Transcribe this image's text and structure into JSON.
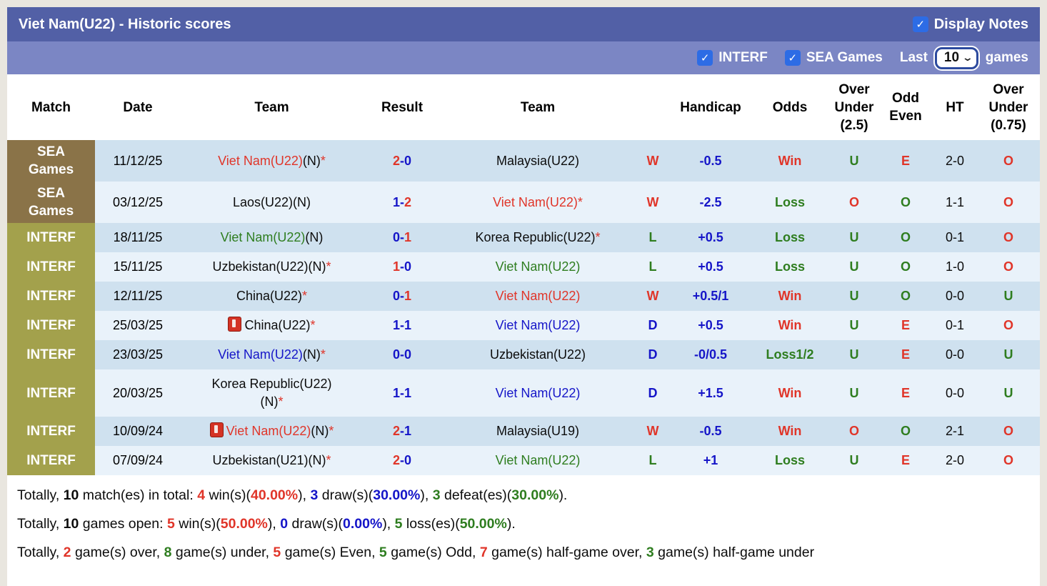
{
  "title_bar": {
    "title": "Viet Nam(U22) - Historic scores",
    "display_notes": {
      "label": "Display Notes",
      "checked": true
    }
  },
  "filter_bar": {
    "interf": {
      "label": "INTERF",
      "checked": true
    },
    "sea_games": {
      "label": "SEA Games",
      "checked": true
    },
    "last_label": "Last",
    "games_label": "games",
    "last_games_select": {
      "value": "10"
    }
  },
  "colors": {
    "win_red": "#e03529",
    "draw_blue": "#1515c8",
    "loss_green": "#2e7d1f",
    "text_black": "#0c0c0c",
    "title_bar_bg": "#5260a6",
    "filter_bar_bg": "#7b86c4",
    "sea_cell_bg": "#8a7348",
    "interf_cell_bg": "#a3a14c",
    "stripe_dark": "#cfe1ef",
    "stripe_light": "#e9f2fa",
    "checkbox_blue": "#2d6ce5"
  },
  "table": {
    "columns": [
      "Match",
      "Date",
      "Team",
      "Result",
      "Team",
      "",
      "Handicap",
      "Odds",
      "Over\nUnder\n(2.5)",
      "Odd\nEven",
      "HT",
      "Over\nUnder\n(0.75)"
    ],
    "rows": [
      {
        "match": "SEA\nGames",
        "match_type": "sea",
        "date": "11/12/25",
        "home": [
          {
            "t": "Viet Nam(U22)",
            "c": "red"
          },
          {
            "t": "(N)",
            "c": "black"
          },
          {
            "t": "*",
            "c": "red"
          }
        ],
        "result": [
          {
            "t": "2",
            "c": "red"
          },
          {
            "t": "-",
            "c": "blue"
          },
          {
            "t": "0",
            "c": "blue"
          }
        ],
        "away": [
          {
            "t": "Malaysia(U22)",
            "c": "black"
          }
        ],
        "wdl": {
          "t": "W",
          "c": "red"
        },
        "handicap": {
          "t": "-0.5",
          "c": "blue"
        },
        "odds": {
          "t": "Win",
          "c": "red"
        },
        "ou25": {
          "t": "U",
          "c": "green"
        },
        "oddeven": {
          "t": "E",
          "c": "red"
        },
        "ht": "2-0",
        "ou075": {
          "t": "O",
          "c": "red"
        }
      },
      {
        "match": "SEA\nGames",
        "match_type": "sea",
        "date": "03/12/25",
        "home": [
          {
            "t": "Laos(U22)(N)",
            "c": "black"
          }
        ],
        "result": [
          {
            "t": "1",
            "c": "blue"
          },
          {
            "t": "-",
            "c": "blue"
          },
          {
            "t": "2",
            "c": "red"
          }
        ],
        "away": [
          {
            "t": "Viet Nam(U22)",
            "c": "red"
          },
          {
            "t": "*",
            "c": "red"
          }
        ],
        "wdl": {
          "t": "W",
          "c": "red"
        },
        "handicap": {
          "t": "-2.5",
          "c": "blue"
        },
        "odds": {
          "t": "Loss",
          "c": "green"
        },
        "ou25": {
          "t": "O",
          "c": "red"
        },
        "oddeven": {
          "t": "O",
          "c": "green"
        },
        "ht": "1-1",
        "ou075": {
          "t": "O",
          "c": "red"
        }
      },
      {
        "match": "INTERF",
        "match_type": "interf",
        "date": "18/11/25",
        "home": [
          {
            "t": "Viet Nam(U22)",
            "c": "green"
          },
          {
            "t": "(N)",
            "c": "black"
          }
        ],
        "result": [
          {
            "t": "0",
            "c": "blue"
          },
          {
            "t": "-",
            "c": "blue"
          },
          {
            "t": "1",
            "c": "red"
          }
        ],
        "away": [
          {
            "t": "Korea Republic(U22)",
            "c": "black"
          },
          {
            "t": "*",
            "c": "red"
          }
        ],
        "wdl": {
          "t": "L",
          "c": "green"
        },
        "handicap": {
          "t": "+0.5",
          "c": "blue"
        },
        "odds": {
          "t": "Loss",
          "c": "green"
        },
        "ou25": {
          "t": "U",
          "c": "green"
        },
        "oddeven": {
          "t": "O",
          "c": "green"
        },
        "ht": "0-1",
        "ou075": {
          "t": "O",
          "c": "red"
        }
      },
      {
        "match": "INTERF",
        "match_type": "interf",
        "date": "15/11/25",
        "home": [
          {
            "t": "Uzbekistan(U22)(N)",
            "c": "black"
          },
          {
            "t": "*",
            "c": "red"
          }
        ],
        "result": [
          {
            "t": "1",
            "c": "red"
          },
          {
            "t": "-",
            "c": "blue"
          },
          {
            "t": "0",
            "c": "blue"
          }
        ],
        "away": [
          {
            "t": "Viet Nam(U22)",
            "c": "green"
          }
        ],
        "wdl": {
          "t": "L",
          "c": "green"
        },
        "handicap": {
          "t": "+0.5",
          "c": "blue"
        },
        "odds": {
          "t": "Loss",
          "c": "green"
        },
        "ou25": {
          "t": "U",
          "c": "green"
        },
        "oddeven": {
          "t": "O",
          "c": "green"
        },
        "ht": "1-0",
        "ou075": {
          "t": "O",
          "c": "red"
        }
      },
      {
        "match": "INTERF",
        "match_type": "interf",
        "date": "12/11/25",
        "home": [
          {
            "t": "China(U22)",
            "c": "black"
          },
          {
            "t": "*",
            "c": "red"
          }
        ],
        "result": [
          {
            "t": "0",
            "c": "blue"
          },
          {
            "t": "-",
            "c": "blue"
          },
          {
            "t": "1",
            "c": "red"
          }
        ],
        "away": [
          {
            "t": "Viet Nam(U22)",
            "c": "red"
          }
        ],
        "wdl": {
          "t": "W",
          "c": "red"
        },
        "handicap": {
          "t": "+0.5/1",
          "c": "blue"
        },
        "odds": {
          "t": "Win",
          "c": "red"
        },
        "ou25": {
          "t": "U",
          "c": "green"
        },
        "oddeven": {
          "t": "O",
          "c": "green"
        },
        "ht": "0-0",
        "ou075": {
          "t": "U",
          "c": "green"
        }
      },
      {
        "match": "INTERF",
        "match_type": "interf",
        "date": "25/03/25",
        "home_icon": "red-card-icon",
        "home": [
          {
            "t": "China(U22)",
            "c": "black"
          },
          {
            "t": "*",
            "c": "red"
          }
        ],
        "result": [
          {
            "t": "1",
            "c": "blue"
          },
          {
            "t": "-",
            "c": "blue"
          },
          {
            "t": "1",
            "c": "blue"
          }
        ],
        "away": [
          {
            "t": "Viet Nam(U22)",
            "c": "blue"
          }
        ],
        "wdl": {
          "t": "D",
          "c": "blue"
        },
        "handicap": {
          "t": "+0.5",
          "c": "blue"
        },
        "odds": {
          "t": "Win",
          "c": "red"
        },
        "ou25": {
          "t": "U",
          "c": "green"
        },
        "oddeven": {
          "t": "E",
          "c": "red"
        },
        "ht": "0-1",
        "ou075": {
          "t": "O",
          "c": "red"
        }
      },
      {
        "match": "INTERF",
        "match_type": "interf",
        "date": "23/03/25",
        "home": [
          {
            "t": "Viet Nam(U22)",
            "c": "blue"
          },
          {
            "t": "(N)",
            "c": "black"
          },
          {
            "t": "*",
            "c": "red"
          }
        ],
        "result": [
          {
            "t": "0",
            "c": "blue"
          },
          {
            "t": "-",
            "c": "blue"
          },
          {
            "t": "0",
            "c": "blue"
          }
        ],
        "away": [
          {
            "t": "Uzbekistan(U22)",
            "c": "black"
          }
        ],
        "wdl": {
          "t": "D",
          "c": "blue"
        },
        "handicap": {
          "t": "-0/0.5",
          "c": "blue"
        },
        "odds": {
          "t": "Loss1/2",
          "c": "green"
        },
        "ou25": {
          "t": "U",
          "c": "green"
        },
        "oddeven": {
          "t": "E",
          "c": "red"
        },
        "ht": "0-0",
        "ou075": {
          "t": "U",
          "c": "green"
        }
      },
      {
        "match": "INTERF",
        "match_type": "interf",
        "date": "20/03/25",
        "home": [
          {
            "t": "Korea Republic(U22)",
            "c": "black"
          },
          {
            "br": true
          },
          {
            "t": "(N)",
            "c": "black"
          },
          {
            "t": "*",
            "c": "red"
          }
        ],
        "result": [
          {
            "t": "1",
            "c": "blue"
          },
          {
            "t": "-",
            "c": "blue"
          },
          {
            "t": "1",
            "c": "blue"
          }
        ],
        "away": [
          {
            "t": "Viet Nam(U22)",
            "c": "blue"
          }
        ],
        "wdl": {
          "t": "D",
          "c": "blue"
        },
        "handicap": {
          "t": "+1.5",
          "c": "blue"
        },
        "odds": {
          "t": "Win",
          "c": "red"
        },
        "ou25": {
          "t": "U",
          "c": "green"
        },
        "oddeven": {
          "t": "E",
          "c": "red"
        },
        "ht": "0-0",
        "ou075": {
          "t": "U",
          "c": "green"
        }
      },
      {
        "match": "INTERF",
        "match_type": "interf",
        "date": "10/09/24",
        "home_icon": "red-card-icon",
        "home": [
          {
            "t": "Viet Nam(U22)",
            "c": "red"
          },
          {
            "t": "(N)",
            "c": "black"
          },
          {
            "t": "*",
            "c": "red"
          }
        ],
        "result": [
          {
            "t": "2",
            "c": "red"
          },
          {
            "t": "-",
            "c": "blue"
          },
          {
            "t": "1",
            "c": "blue"
          }
        ],
        "away": [
          {
            "t": "Malaysia(U19)",
            "c": "black"
          }
        ],
        "wdl": {
          "t": "W",
          "c": "red"
        },
        "handicap": {
          "t": "-0.5",
          "c": "blue"
        },
        "odds": {
          "t": "Win",
          "c": "red"
        },
        "ou25": {
          "t": "O",
          "c": "red"
        },
        "oddeven": {
          "t": "O",
          "c": "green"
        },
        "ht": "2-1",
        "ou075": {
          "t": "O",
          "c": "red"
        }
      },
      {
        "match": "INTERF",
        "match_type": "interf",
        "date": "07/09/24",
        "home": [
          {
            "t": "Uzbekistan(U21)(N)",
            "c": "black"
          },
          {
            "t": "*",
            "c": "red"
          }
        ],
        "result": [
          {
            "t": "2",
            "c": "red"
          },
          {
            "t": "-",
            "c": "blue"
          },
          {
            "t": "0",
            "c": "blue"
          }
        ],
        "away": [
          {
            "t": "Viet Nam(U22)",
            "c": "green"
          }
        ],
        "wdl": {
          "t": "L",
          "c": "green"
        },
        "handicap": {
          "t": "+1",
          "c": "blue"
        },
        "odds": {
          "t": "Loss",
          "c": "green"
        },
        "ou25": {
          "t": "U",
          "c": "green"
        },
        "oddeven": {
          "t": "E",
          "c": "red"
        },
        "ht": "2-0",
        "ou075": {
          "t": "O",
          "c": "red"
        }
      }
    ]
  },
  "summary": {
    "lines": [
      [
        {
          "t": "Totally, ",
          "c": "black"
        },
        {
          "t": "10",
          "c": "black",
          "b": true
        },
        {
          "t": " match(es) in total: ",
          "c": "black"
        },
        {
          "t": "4",
          "c": "red",
          "b": true
        },
        {
          "t": " win(s)(",
          "c": "black"
        },
        {
          "t": "40.00%",
          "c": "red",
          "b": true
        },
        {
          "t": "), ",
          "c": "black"
        },
        {
          "t": "3",
          "c": "blue",
          "b": true
        },
        {
          "t": " draw(s)(",
          "c": "black"
        },
        {
          "t": "30.00%",
          "c": "blue",
          "b": true
        },
        {
          "t": "), ",
          "c": "black"
        },
        {
          "t": "3",
          "c": "green",
          "b": true
        },
        {
          "t": " defeat(es)(",
          "c": "black"
        },
        {
          "t": "30.00%",
          "c": "green",
          "b": true
        },
        {
          "t": ").",
          "c": "black"
        }
      ],
      [
        {
          "t": "Totally, ",
          "c": "black"
        },
        {
          "t": "10",
          "c": "black",
          "b": true
        },
        {
          "t": " games open: ",
          "c": "black"
        },
        {
          "t": "5",
          "c": "red",
          "b": true
        },
        {
          "t": " win(s)(",
          "c": "black"
        },
        {
          "t": "50.00%",
          "c": "red",
          "b": true
        },
        {
          "t": "), ",
          "c": "black"
        },
        {
          "t": "0",
          "c": "blue",
          "b": true
        },
        {
          "t": " draw(s)(",
          "c": "black"
        },
        {
          "t": "0.00%",
          "c": "blue",
          "b": true
        },
        {
          "t": "), ",
          "c": "black"
        },
        {
          "t": "5",
          "c": "green",
          "b": true
        },
        {
          "t": " loss(es)(",
          "c": "black"
        },
        {
          "t": "50.00%",
          "c": "green",
          "b": true
        },
        {
          "t": ").",
          "c": "black"
        }
      ],
      [
        {
          "t": "Totally, ",
          "c": "black"
        },
        {
          "t": "2",
          "c": "red",
          "b": true
        },
        {
          "t": " game(s) over, ",
          "c": "black"
        },
        {
          "t": "8",
          "c": "green",
          "b": true
        },
        {
          "t": " game(s) under, ",
          "c": "black"
        },
        {
          "t": "5",
          "c": "red",
          "b": true
        },
        {
          "t": " game(s) Even, ",
          "c": "black"
        },
        {
          "t": "5",
          "c": "green",
          "b": true
        },
        {
          "t": " game(s) Odd, ",
          "c": "black"
        },
        {
          "t": "7",
          "c": "red",
          "b": true
        },
        {
          "t": " game(s) half-game over, ",
          "c": "black"
        },
        {
          "t": "3",
          "c": "green",
          "b": true
        },
        {
          "t": " game(s) half-game under",
          "c": "black"
        }
      ]
    ]
  }
}
